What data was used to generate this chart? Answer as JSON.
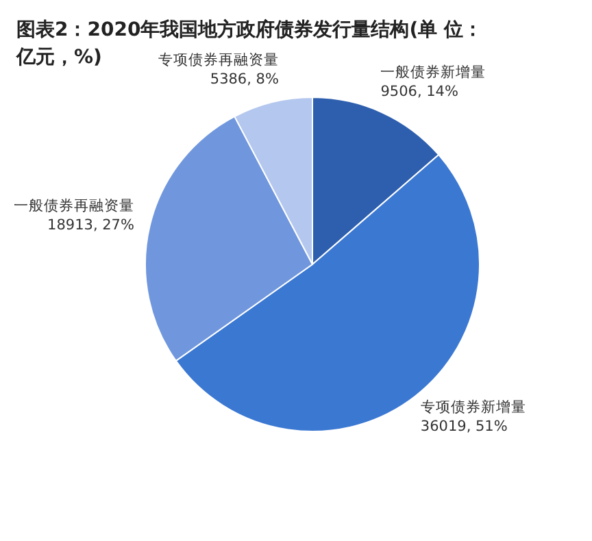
{
  "chart_data": {
    "type": "pie",
    "title": "图表2：2020年我国地方政府债券发行量结构(单 位：亿元，%)",
    "categories": [
      "一般债券新增量",
      "专项债券新增量",
      "一般债券再融资量",
      "专项债券再融资量"
    ],
    "values": [
      9506,
      36019,
      18913,
      5386
    ],
    "value_labels": [
      "9506, 14%",
      "36019, 51%",
      "18913, 27%",
      "5386, 8%"
    ],
    "colors": [
      "#2e5fae",
      "#3b78d2",
      "#7097dd",
      "#b4c7ee"
    ]
  }
}
